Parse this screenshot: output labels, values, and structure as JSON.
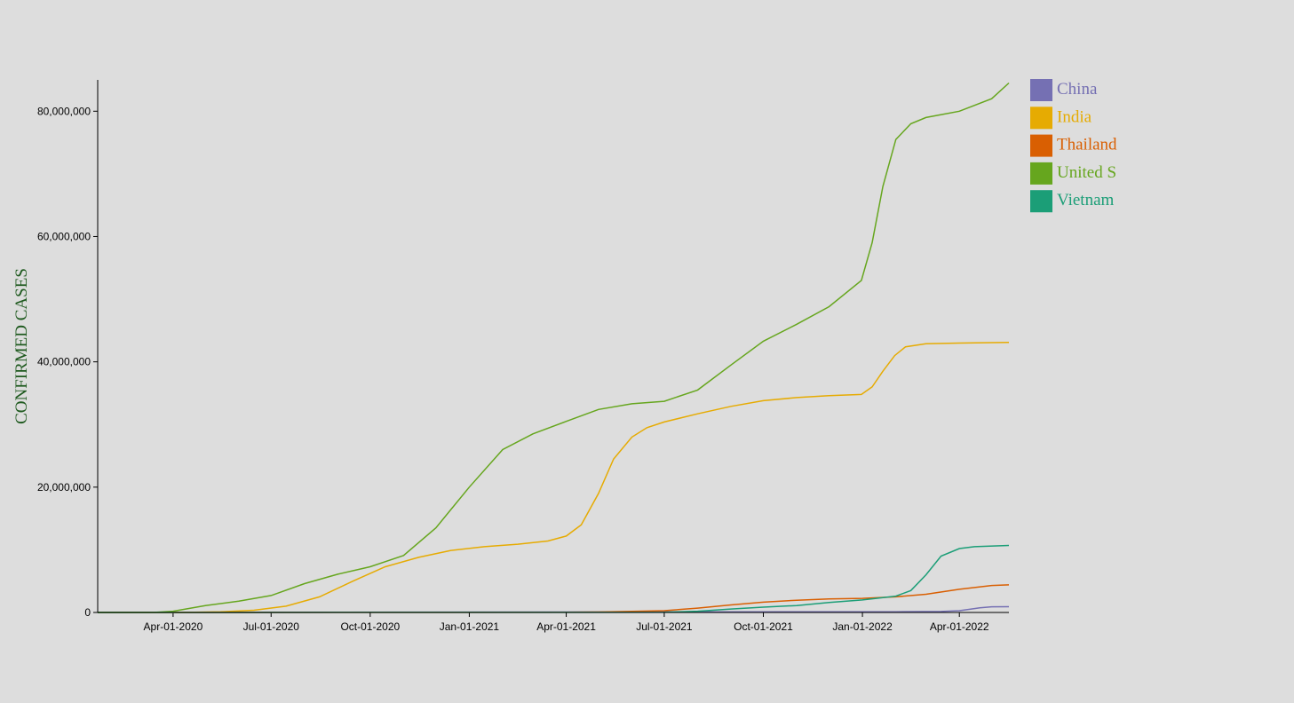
{
  "chart_data": {
    "type": "line",
    "ylabel": "CONFIRMED CASES",
    "ylabel_color": "#1f5a1f",
    "x_domain": [
      "2020-01-22",
      "2022-05-17"
    ],
    "y_domain": [
      0,
      85000000
    ],
    "y_ticks": [
      {
        "value": 0,
        "label": "0"
      },
      {
        "value": 20000000,
        "label": "20,000,000"
      },
      {
        "value": 40000000,
        "label": "40,000,000"
      },
      {
        "value": 60000000,
        "label": "60,000,000"
      },
      {
        "value": 80000000,
        "label": "80,000,000"
      }
    ],
    "x_ticks": [
      {
        "date": "2020-04-01",
        "label": "Apr-01-2020"
      },
      {
        "date": "2020-07-01",
        "label": "Jul-01-2020"
      },
      {
        "date": "2020-10-01",
        "label": "Oct-01-2020"
      },
      {
        "date": "2021-01-01",
        "label": "Jan-01-2021"
      },
      {
        "date": "2021-04-01",
        "label": "Apr-01-2021"
      },
      {
        "date": "2021-07-01",
        "label": "Jul-01-2021"
      },
      {
        "date": "2021-10-01",
        "label": "Oct-01-2021"
      },
      {
        "date": "2022-01-01",
        "label": "Jan-01-2022"
      },
      {
        "date": "2022-04-01",
        "label": "Apr-01-2022"
      }
    ],
    "legend_position": "top-right",
    "series": [
      {
        "name": "China",
        "color": "#7570b3",
        "points": [
          [
            "2020-01-22",
            0
          ],
          [
            "2021-07-01",
            90000
          ],
          [
            "2022-02-01",
            110000
          ],
          [
            "2022-03-15",
            160000
          ],
          [
            "2022-04-01",
            280000
          ],
          [
            "2022-04-10",
            500000
          ],
          [
            "2022-04-20",
            750000
          ],
          [
            "2022-05-01",
            900000
          ],
          [
            "2022-05-17",
            920000
          ]
        ]
      },
      {
        "name": "India",
        "color": "#e6ab02",
        "points": [
          [
            "2020-01-22",
            0
          ],
          [
            "2020-04-15",
            20000
          ],
          [
            "2020-05-15",
            100000
          ],
          [
            "2020-06-15",
            350000
          ],
          [
            "2020-07-15",
            1000000
          ],
          [
            "2020-08-15",
            2500000
          ],
          [
            "2020-09-15",
            5000000
          ],
          [
            "2020-10-15",
            7300000
          ],
          [
            "2020-11-15",
            8800000
          ],
          [
            "2020-12-15",
            9900000
          ],
          [
            "2021-01-15",
            10500000
          ],
          [
            "2021-02-15",
            10900000
          ],
          [
            "2021-03-15",
            11400000
          ],
          [
            "2021-04-01",
            12200000
          ],
          [
            "2021-04-15",
            14000000
          ],
          [
            "2021-05-01",
            19000000
          ],
          [
            "2021-05-15",
            24500000
          ],
          [
            "2021-06-01",
            28000000
          ],
          [
            "2021-06-15",
            29500000
          ],
          [
            "2021-07-01",
            30400000
          ],
          [
            "2021-08-01",
            31700000
          ],
          [
            "2021-09-01",
            32900000
          ],
          [
            "2021-10-01",
            33800000
          ],
          [
            "2021-11-01",
            34300000
          ],
          [
            "2021-12-01",
            34600000
          ],
          [
            "2021-12-31",
            34800000
          ],
          [
            "2022-01-10",
            36000000
          ],
          [
            "2022-01-20",
            38500000
          ],
          [
            "2022-01-31",
            41000000
          ],
          [
            "2022-02-10",
            42400000
          ],
          [
            "2022-03-01",
            42900000
          ],
          [
            "2022-04-01",
            43000000
          ],
          [
            "2022-05-17",
            43100000
          ]
        ]
      },
      {
        "name": "Thailand",
        "color": "#d95f02",
        "points": [
          [
            "2020-01-22",
            0
          ],
          [
            "2021-04-01",
            30000
          ],
          [
            "2021-05-01",
            70000
          ],
          [
            "2021-06-01",
            180000
          ],
          [
            "2021-07-01",
            280000
          ],
          [
            "2021-08-01",
            700000
          ],
          [
            "2021-09-01",
            1200000
          ],
          [
            "2021-10-01",
            1650000
          ],
          [
            "2021-11-01",
            1950000
          ],
          [
            "2021-12-01",
            2150000
          ],
          [
            "2022-01-01",
            2250000
          ],
          [
            "2022-02-01",
            2500000
          ],
          [
            "2022-03-01",
            2900000
          ],
          [
            "2022-04-01",
            3700000
          ],
          [
            "2022-05-01",
            4300000
          ],
          [
            "2022-05-17",
            4400000
          ]
        ]
      },
      {
        "name": "United S",
        "color": "#66a61e",
        "points": [
          [
            "2020-01-22",
            0
          ],
          [
            "2020-03-15",
            10000
          ],
          [
            "2020-04-01",
            200000
          ],
          [
            "2020-05-01",
            1100000
          ],
          [
            "2020-06-01",
            1800000
          ],
          [
            "2020-07-01",
            2700000
          ],
          [
            "2020-08-01",
            4600000
          ],
          [
            "2020-09-01",
            6100000
          ],
          [
            "2020-10-01",
            7300000
          ],
          [
            "2020-11-01",
            9100000
          ],
          [
            "2020-12-01",
            13500000
          ],
          [
            "2021-01-01",
            20000000
          ],
          [
            "2021-02-01",
            26000000
          ],
          [
            "2021-03-01",
            28500000
          ],
          [
            "2021-04-01",
            30500000
          ],
          [
            "2021-05-01",
            32400000
          ],
          [
            "2021-06-01",
            33300000
          ],
          [
            "2021-07-01",
            33700000
          ],
          [
            "2021-08-01",
            35500000
          ],
          [
            "2021-09-01",
            39500000
          ],
          [
            "2021-10-01",
            43300000
          ],
          [
            "2021-11-01",
            46000000
          ],
          [
            "2021-12-01",
            48800000
          ],
          [
            "2021-12-31",
            53000000
          ],
          [
            "2022-01-10",
            59000000
          ],
          [
            "2022-01-20",
            68000000
          ],
          [
            "2022-02-01",
            75500000
          ],
          [
            "2022-02-15",
            78000000
          ],
          [
            "2022-03-01",
            79000000
          ],
          [
            "2022-04-01",
            80000000
          ],
          [
            "2022-05-01",
            82000000
          ],
          [
            "2022-05-17",
            84500000
          ]
        ]
      },
      {
        "name": "Vietnam",
        "color": "#1b9e77",
        "points": [
          [
            "2020-01-22",
            0
          ],
          [
            "2021-07-01",
            30000
          ],
          [
            "2021-08-01",
            200000
          ],
          [
            "2021-09-01",
            550000
          ],
          [
            "2021-10-01",
            850000
          ],
          [
            "2021-11-01",
            1100000
          ],
          [
            "2021-12-01",
            1600000
          ],
          [
            "2022-01-01",
            2000000
          ],
          [
            "2022-02-01",
            2600000
          ],
          [
            "2022-02-15",
            3500000
          ],
          [
            "2022-03-01",
            6000000
          ],
          [
            "2022-03-15",
            9000000
          ],
          [
            "2022-04-01",
            10200000
          ],
          [
            "2022-04-15",
            10500000
          ],
          [
            "2022-05-17",
            10700000
          ]
        ]
      }
    ]
  }
}
